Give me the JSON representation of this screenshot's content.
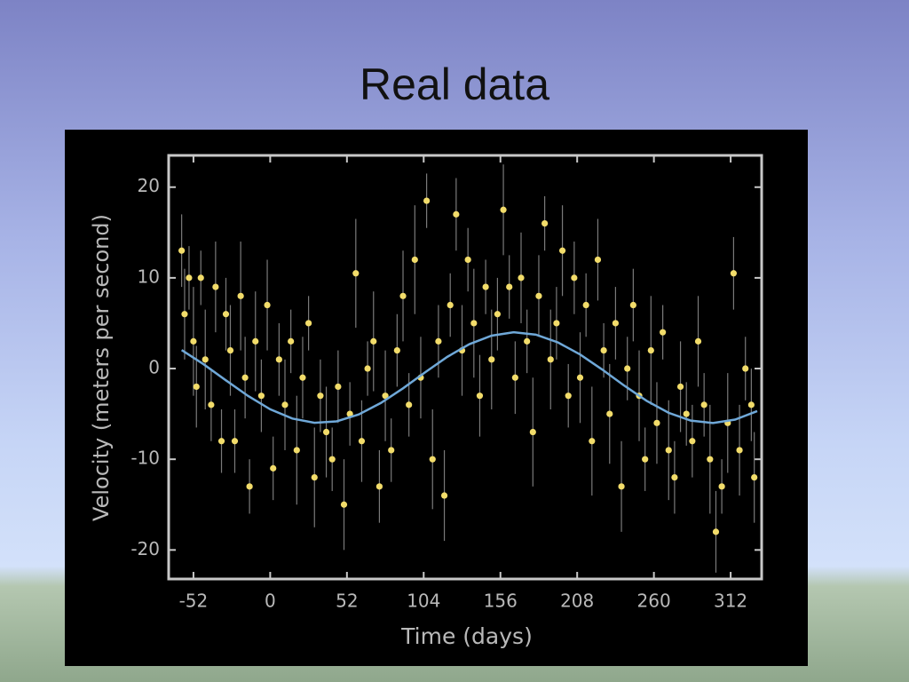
{
  "title": "Real data",
  "chart_data": {
    "type": "scatter",
    "xlabel": "Time (days)",
    "ylabel": "Velocity  (meters per second)",
    "xlim": [
      -68.8,
      333
    ],
    "ylim": [
      -23.2,
      23.5
    ],
    "xticks": [
      -52,
      0,
      52,
      104,
      156,
      208,
      260,
      312
    ],
    "yticks": [
      -20,
      -10,
      0,
      10,
      20
    ],
    "series": [
      {
        "type": "scatter",
        "color": "#f2dc6a",
        "error_color": "#7a7a7a",
        "x": [
          -60,
          -58,
          -55,
          -52,
          -50,
          -47,
          -44,
          -40,
          -37,
          -33,
          -30,
          -27,
          -24,
          -20,
          -17,
          -14,
          -10,
          -6,
          -2,
          2,
          6,
          10,
          14,
          18,
          22,
          26,
          30,
          34,
          38,
          42,
          46,
          50,
          54,
          58,
          62,
          66,
          70,
          74,
          78,
          82,
          86,
          90,
          94,
          98,
          102,
          106,
          110,
          114,
          118,
          122,
          126,
          130,
          134,
          138,
          142,
          146,
          150,
          154,
          158,
          162,
          166,
          170,
          174,
          178,
          182,
          186,
          190,
          194,
          198,
          202,
          206,
          210,
          214,
          218,
          222,
          226,
          230,
          234,
          238,
          242,
          246,
          250,
          254,
          258,
          262,
          266,
          270,
          274,
          278,
          282,
          286,
          290,
          294,
          298,
          302,
          306,
          310,
          314,
          318,
          322,
          326,
          328
        ],
        "values": [
          13,
          6,
          10,
          3,
          -2,
          10,
          1,
          -4,
          9,
          -8,
          6,
          2,
          -8,
          8,
          -1,
          -13,
          3,
          -3,
          7,
          -11,
          1,
          -4,
          3,
          -9,
          -1,
          5,
          -12,
          -3,
          -7,
          -10,
          -2,
          -15,
          -5,
          10.5,
          -8,
          0,
          3,
          -13,
          -3,
          -9,
          2,
          8,
          -4,
          12,
          -1,
          18.5,
          -10,
          3,
          -14,
          7,
          17,
          2,
          12,
          5,
          -3,
          9,
          1,
          6,
          17.5,
          9,
          -1,
          10,
          3,
          -7,
          8,
          16,
          1,
          5,
          13,
          -3,
          10,
          -1,
          7,
          -8,
          12,
          2,
          -5,
          5,
          -13,
          0,
          7,
          -3,
          -10,
          2,
          -6,
          4,
          -9,
          -12,
          -2,
          -5,
          -8,
          3,
          -4,
          -10,
          -18,
          -13,
          -6,
          10.5,
          -9,
          0,
          -4,
          -12
        ],
        "errors": [
          4,
          5,
          3.5,
          6,
          4.5,
          3,
          5.5,
          4,
          5,
          3.5,
          4,
          5,
          3.5,
          6,
          4.5,
          3,
          5.5,
          4,
          5,
          3.5,
          4,
          5,
          3.5,
          6,
          4.5,
          3,
          5.5,
          4,
          5,
          3.5,
          4,
          5,
          3.5,
          6,
          4.5,
          3,
          5.5,
          4,
          5,
          3.5,
          4,
          5,
          3.5,
          6,
          4.5,
          3,
          5.5,
          4,
          5,
          3.5,
          4,
          5,
          3.5,
          6,
          4.5,
          3,
          5.5,
          4,
          5,
          3.5,
          4,
          5,
          3.5,
          6,
          4.5,
          3,
          5.5,
          4,
          5,
          3.5,
          4,
          5,
          3.5,
          6,
          4.5,
          3,
          5.5,
          4,
          5,
          3.5,
          4,
          5,
          3.5,
          6,
          4.5,
          3,
          5.5,
          4,
          5,
          3.5,
          4,
          5,
          3.5,
          6,
          4.5,
          3,
          5.5,
          4,
          5,
          3.5,
          4,
          5
        ]
      },
      {
        "type": "line",
        "color": "#6fa8d8",
        "x": [
          -60,
          -45,
          -30,
          -15,
          0,
          15,
          30,
          45,
          60,
          75,
          90,
          105,
          120,
          135,
          150,
          165,
          180,
          195,
          210,
          225,
          240,
          255,
          270,
          285,
          300,
          315,
          330
        ],
        "values": [
          2.04,
          0.46,
          -1.3,
          -3.02,
          -4.49,
          -5.51,
          -5.98,
          -5.82,
          -5.06,
          -3.79,
          -2.18,
          -0.41,
          1.29,
          2.69,
          3.63,
          4.0,
          3.74,
          2.88,
          1.55,
          -0.11,
          -1.89,
          -3.55,
          -4.88,
          -5.74,
          -6.0,
          -5.63,
          -4.69
        ]
      }
    ]
  }
}
